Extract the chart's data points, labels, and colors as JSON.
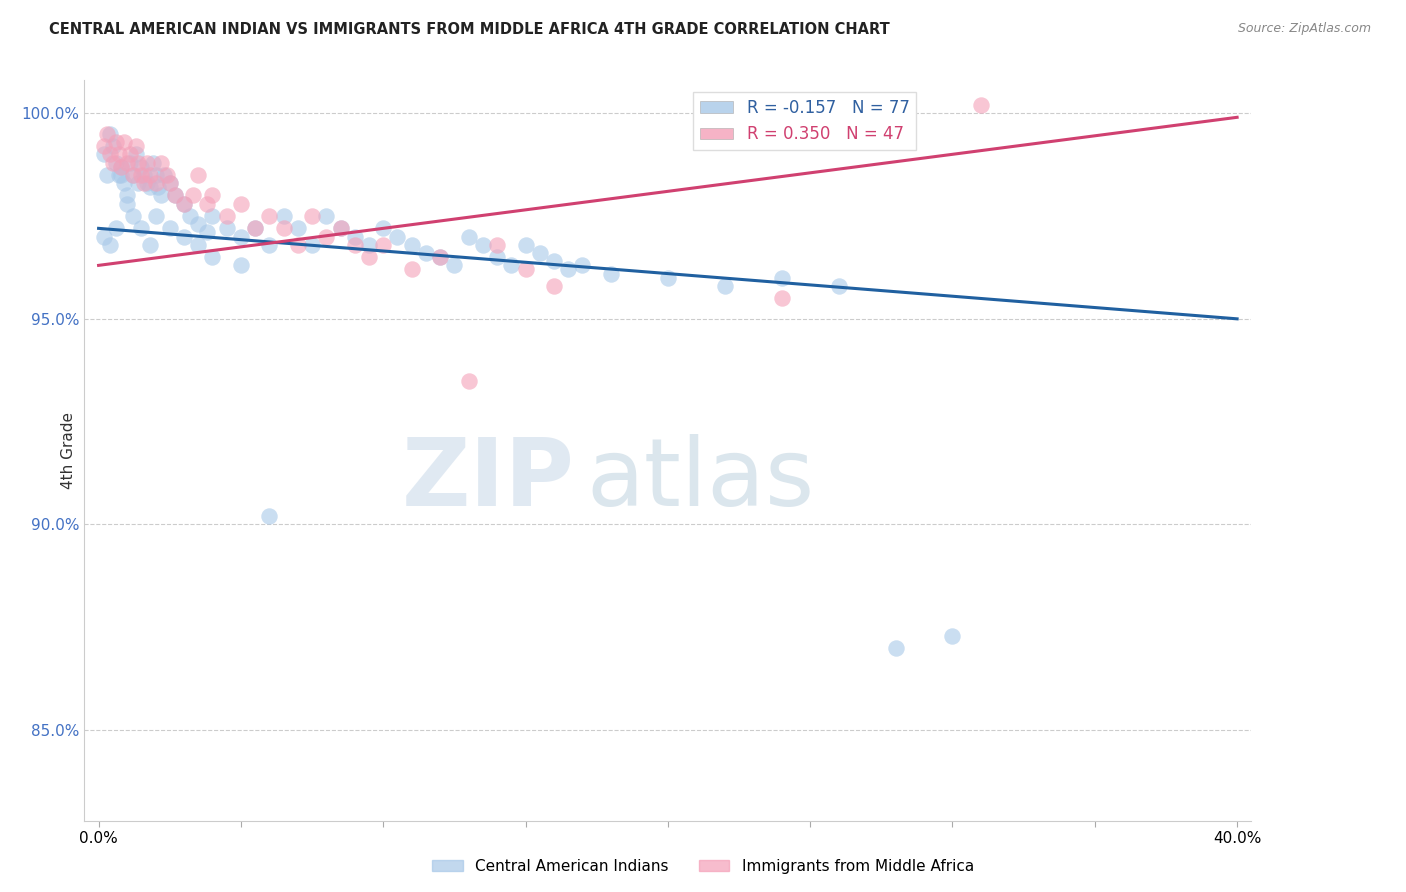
{
  "title": "CENTRAL AMERICAN INDIAN VS IMMIGRANTS FROM MIDDLE AFRICA 4TH GRADE CORRELATION CHART",
  "source": "Source: ZipAtlas.com",
  "ylabel": "4th Grade",
  "ylim": [
    0.828,
    1.008
  ],
  "xlim": [
    -0.005,
    0.405
  ],
  "yticks": [
    0.85,
    0.9,
    0.95,
    1.0
  ],
  "ytick_labels": [
    "85.0%",
    "90.0%",
    "95.0%",
    "100.0%"
  ],
  "legend_blue_r": "R = -0.157",
  "legend_blue_n": "N = 77",
  "legend_pink_r": "R = 0.350",
  "legend_pink_n": "N = 47",
  "blue_color": "#a8c8e8",
  "pink_color": "#f4a0b8",
  "blue_line_color": "#2060a0",
  "pink_line_color": "#d04070",
  "watermark_zip": "ZIP",
  "watermark_atlas": "atlas",
  "blue_scatter_x": [
    0.002,
    0.003,
    0.004,
    0.005,
    0.006,
    0.007,
    0.008,
    0.009,
    0.01,
    0.011,
    0.012,
    0.013,
    0.014,
    0.015,
    0.016,
    0.017,
    0.018,
    0.019,
    0.02,
    0.021,
    0.022,
    0.023,
    0.025,
    0.027,
    0.03,
    0.032,
    0.035,
    0.038,
    0.04,
    0.045,
    0.05,
    0.055,
    0.06,
    0.065,
    0.07,
    0.075,
    0.08,
    0.085,
    0.09,
    0.095,
    0.1,
    0.105,
    0.11,
    0.115,
    0.12,
    0.125,
    0.13,
    0.135,
    0.14,
    0.145,
    0.15,
    0.155,
    0.16,
    0.165,
    0.17,
    0.18,
    0.2,
    0.22,
    0.24,
    0.26,
    0.28,
    0.3,
    0.002,
    0.004,
    0.006,
    0.008,
    0.01,
    0.012,
    0.015,
    0.018,
    0.02,
    0.025,
    0.03,
    0.035,
    0.04,
    0.05,
    0.06
  ],
  "blue_scatter_y": [
    0.99,
    0.985,
    0.995,
    0.992,
    0.988,
    0.985,
    0.987,
    0.983,
    0.98,
    0.988,
    0.985,
    0.99,
    0.983,
    0.987,
    0.985,
    0.983,
    0.982,
    0.988,
    0.985,
    0.982,
    0.98,
    0.985,
    0.983,
    0.98,
    0.978,
    0.975,
    0.973,
    0.971,
    0.975,
    0.972,
    0.97,
    0.972,
    0.968,
    0.975,
    0.972,
    0.968,
    0.975,
    0.972,
    0.97,
    0.968,
    0.972,
    0.97,
    0.968,
    0.966,
    0.965,
    0.963,
    0.97,
    0.968,
    0.965,
    0.963,
    0.968,
    0.966,
    0.964,
    0.962,
    0.963,
    0.961,
    0.96,
    0.958,
    0.96,
    0.958,
    0.87,
    0.873,
    0.97,
    0.968,
    0.972,
    0.985,
    0.978,
    0.975,
    0.972,
    0.968,
    0.975,
    0.972,
    0.97,
    0.968,
    0.965,
    0.963,
    0.902
  ],
  "pink_scatter_x": [
    0.002,
    0.003,
    0.004,
    0.005,
    0.006,
    0.007,
    0.008,
    0.009,
    0.01,
    0.011,
    0.012,
    0.013,
    0.014,
    0.015,
    0.016,
    0.017,
    0.018,
    0.02,
    0.022,
    0.024,
    0.025,
    0.027,
    0.03,
    0.033,
    0.035,
    0.038,
    0.04,
    0.045,
    0.05,
    0.055,
    0.06,
    0.065,
    0.07,
    0.075,
    0.08,
    0.085,
    0.09,
    0.095,
    0.1,
    0.11,
    0.12,
    0.13,
    0.14,
    0.15,
    0.16,
    0.24,
    0.31
  ],
  "pink_scatter_y": [
    0.992,
    0.995,
    0.99,
    0.988,
    0.993,
    0.99,
    0.987,
    0.993,
    0.988,
    0.99,
    0.985,
    0.992,
    0.988,
    0.985,
    0.983,
    0.988,
    0.985,
    0.983,
    0.988,
    0.985,
    0.983,
    0.98,
    0.978,
    0.98,
    0.985,
    0.978,
    0.98,
    0.975,
    0.978,
    0.972,
    0.975,
    0.972,
    0.968,
    0.975,
    0.97,
    0.972,
    0.968,
    0.965,
    0.968,
    0.962,
    0.965,
    0.935,
    0.968,
    0.962,
    0.958,
    0.955,
    1.002
  ],
  "blue_trend_x": [
    0.0,
    0.4
  ],
  "blue_trend_y": [
    0.972,
    0.95
  ],
  "pink_trend_x": [
    0.0,
    0.4
  ],
  "pink_trend_y": [
    0.963,
    0.999
  ]
}
